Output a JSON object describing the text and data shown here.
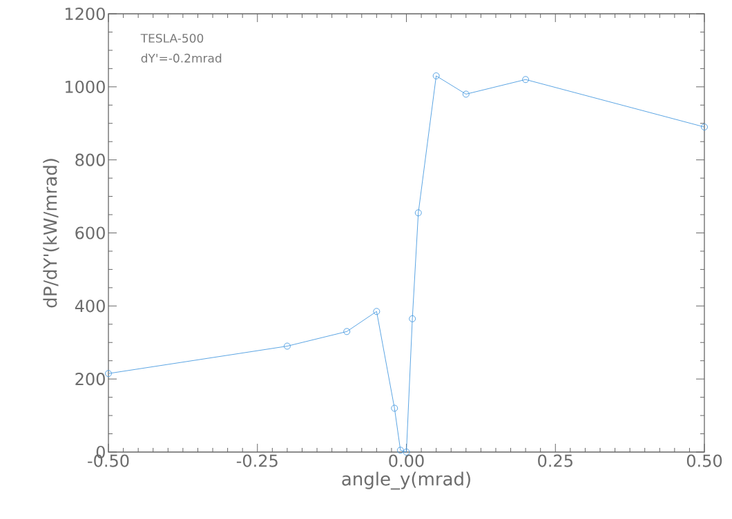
{
  "chart_data": {
    "type": "line",
    "xlabel": "angle_y(mrad)",
    "ylabel": "dP/dY'(kW/mrad)",
    "annotations": [
      "TESLA-500",
      "dY'=-0.2mrad"
    ],
    "x": [
      -0.5,
      -0.2,
      -0.1,
      -0.05,
      -0.02,
      -0.01,
      0.0,
      0.01,
      0.02,
      0.05,
      0.1,
      0.2,
      0.5
    ],
    "series": [
      {
        "color": "#4a9be0",
        "values": [
          215,
          290,
          330,
          385,
          120,
          5,
          0,
          365,
          655,
          1030,
          980,
          1020,
          890
        ]
      }
    ],
    "xlim": [
      -0.5,
      0.5
    ],
    "ylim": [
      0,
      1200
    ],
    "xticks": [
      {
        "value": -0.5,
        "label": "-0.50"
      },
      {
        "value": -0.25,
        "label": "-0.25"
      },
      {
        "value": 0,
        "label": "0.00"
      },
      {
        "value": 0.25,
        "label": "0.25"
      },
      {
        "value": 0.5,
        "label": "0.50"
      }
    ],
    "yticks": [
      0,
      200,
      400,
      600,
      800,
      1000,
      1200
    ],
    "marker": "circle",
    "line_style": "solid"
  }
}
